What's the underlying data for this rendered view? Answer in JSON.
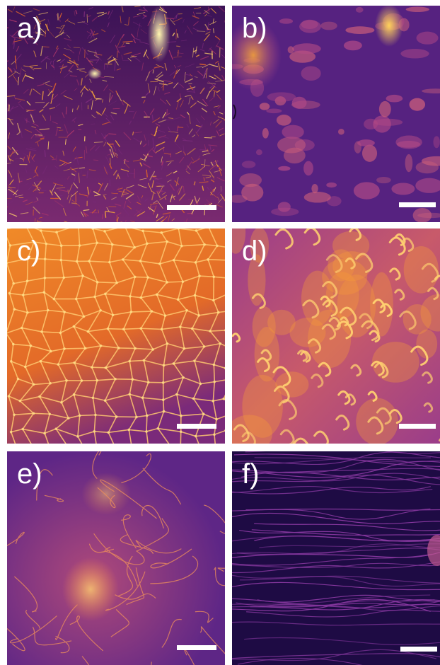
{
  "figure": {
    "panels": [
      {
        "id": "a",
        "label": "a)"
      },
      {
        "id": "b",
        "label": "b)"
      },
      {
        "id": "c",
        "label": "c)"
      },
      {
        "id": "d",
        "label": "d)"
      },
      {
        "id": "e",
        "label": "e)"
      },
      {
        "id": "f",
        "label": "f)"
      }
    ]
  },
  "colors": {
    "background": "#ffffff",
    "colormap": "inferno-like",
    "panel_a_base": "#3a1660",
    "panel_b_base": "#55207a",
    "panel_c_base": "#e06a20",
    "panel_d_base": "#b24e7a",
    "panel_e_base": "#6a2a8a",
    "panel_f_base": "#1c0b40",
    "highlight": "#ffe27a"
  }
}
